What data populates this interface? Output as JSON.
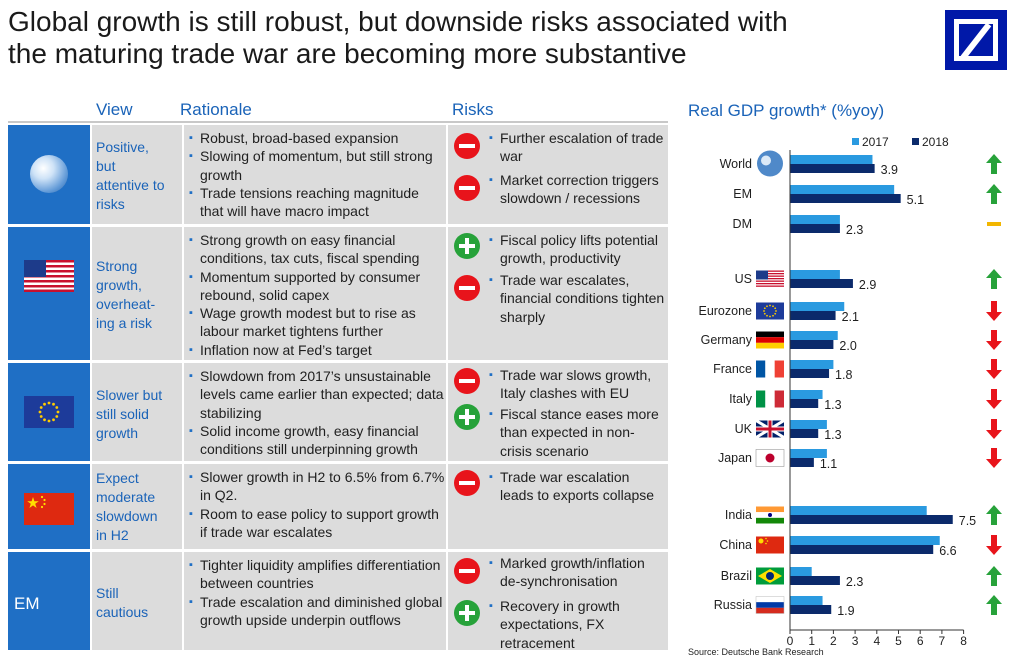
{
  "title_line1": "Global growth is still robust, but downside risks associated with",
  "title_line2": "the maturing trade war are becoming more substantive",
  "headers": {
    "view": "View",
    "rationale": "Rationale",
    "risks": "Risks"
  },
  "rows": [
    {
      "icon": "globe-icon",
      "view": [
        "Positive,",
        "but",
        "attentive to",
        "risks"
      ],
      "rationale": [
        "Robust, broad-based expansion",
        "Slowing of momentum, but still strong growth",
        "Trade tensions reaching magnitude that will have macro impact"
      ],
      "risks": [
        {
          "sign": "minus",
          "text": "Further escalation of trade war"
        },
        {
          "sign": "minus",
          "text": "Market correction triggers slowdown / recessions"
        }
      ]
    },
    {
      "icon": "us-flag-icon",
      "view": [
        "Strong",
        "growth,",
        "overheat-",
        "ing a risk"
      ],
      "rationale": [
        "Strong growth on easy financial conditions, tax cuts, fiscal spending",
        "Momentum supported by consumer rebound, solid capex",
        "Wage growth modest but to rise as labour market tightens further",
        "Inflation now at Fed’s target"
      ],
      "risks": [
        {
          "sign": "plus",
          "text": "Fiscal policy lifts potential growth, productivity"
        },
        {
          "sign": "minus",
          "text": "Trade war escalates, financial conditions tighten sharply"
        }
      ]
    },
    {
      "icon": "eu-flag-icon",
      "view": [
        "Slower but",
        "still solid",
        "growth"
      ],
      "rationale": [
        "Slowdown from 2017’s unsustainable levels came earlier than expected; data stabilizing",
        "Solid income growth, easy financial conditions still underpinning growth"
      ],
      "risks": [
        {
          "sign": "minus",
          "text": "Trade war slows growth, Italy clashes with EU"
        },
        {
          "sign": "plus",
          "text": "Fiscal stance eases more than expected in non-crisis scenario"
        }
      ]
    },
    {
      "icon": "china-flag-icon",
      "view": [
        "Expect",
        "moderate",
        "slowdown",
        "in H2"
      ],
      "rationale": [
        "Slower growth in H2 to 6.5% from 6.7% in Q2.",
        "Room to ease policy to support growth if trade war escalates"
      ],
      "risks": [
        {
          "sign": "minus",
          "text": "Trade war escalation leads to exports collapse"
        }
      ]
    },
    {
      "icon": "em-label",
      "icon_text": "EM",
      "view": [
        "Still",
        "cautious"
      ],
      "rationale": [
        "Tighter liquidity amplifies differentiation between countries",
        "Trade escalation and diminished global growth upside underpin outflows"
      ],
      "risks": [
        {
          "sign": "minus",
          "text": "Marked growth/inflation de-synchronisation"
        },
        {
          "sign": "plus",
          "text": "Recovery in growth expectations, FX retracement"
        }
      ]
    }
  ],
  "chart_data": {
    "type": "bar",
    "orientation": "horizontal",
    "title": "Real GDP growth* (%yoy)",
    "categories": [
      "World",
      "EM",
      "DM",
      "US",
      "Eurozone",
      "Germany",
      "France",
      "Italy",
      "UK",
      "Japan",
      "India",
      "China",
      "Brazil",
      "Russia"
    ],
    "series": [
      {
        "name": "2017",
        "color": "#2a9ae0",
        "values": [
          3.8,
          4.8,
          2.3,
          2.3,
          2.5,
          2.2,
          2.0,
          1.5,
          1.7,
          1.7,
          6.3,
          6.9,
          1.0,
          1.5
        ]
      },
      {
        "name": "2018",
        "color": "#0b2a6b",
        "values": [
          3.9,
          5.1,
          2.3,
          2.9,
          2.1,
          2.0,
          1.8,
          1.3,
          1.3,
          1.1,
          7.5,
          6.6,
          2.3,
          1.9
        ]
      }
    ],
    "data_labels": [
      "3.9",
      "5.1",
      "2.3",
      "2.9",
      "2.1",
      "2.0",
      "1.8",
      "1.3",
      "1.3",
      "1.1",
      "7.5",
      "6.6",
      "2.3",
      "1.9"
    ],
    "trend": [
      "up",
      "up",
      "flat",
      "up",
      "down",
      "down",
      "down",
      "down",
      "down",
      "down",
      "up",
      "down",
      "up",
      "up"
    ],
    "xlim": [
      0,
      8
    ],
    "xticks": [
      "0",
      "1",
      "2",
      "3",
      "4",
      "5",
      "6",
      "7",
      "8"
    ],
    "legend_position": "top",
    "grid": false
  },
  "colors": {
    "up": "#27a23a",
    "down": "#e8141b",
    "flat": "#f2b600",
    "accent": "#1a63b8"
  },
  "source": "Source: Deutsche Bank Research"
}
